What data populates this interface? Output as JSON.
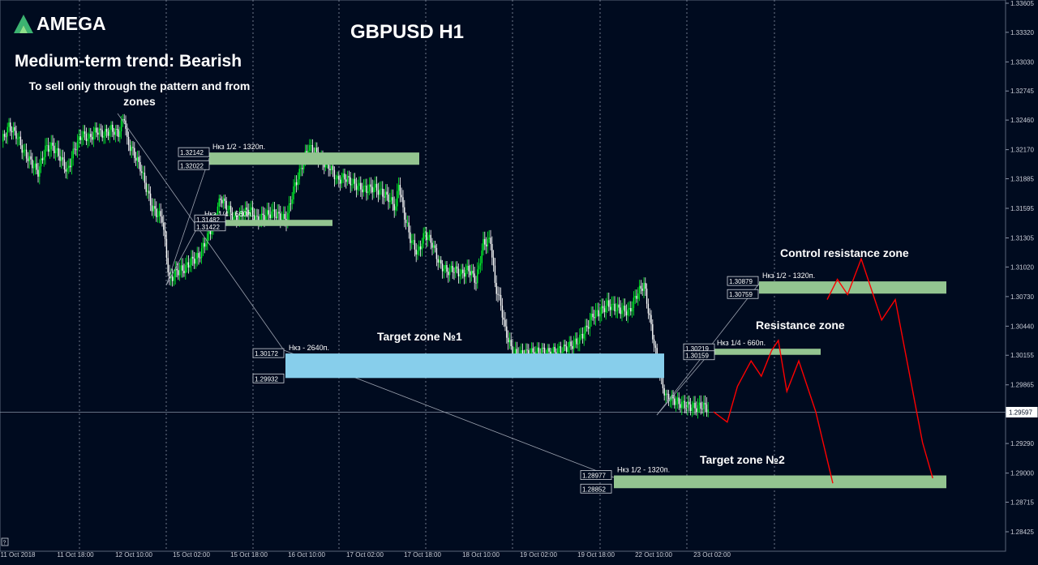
{
  "brand": {
    "name": "AMEGA"
  },
  "chart_data": {
    "type": "candlestick",
    "title": "GBPUSD H1",
    "ylim": [
      1.283,
      1.3364
    ],
    "x_ticks": [
      "11 Oct 2018",
      "11 Oct 18:00",
      "12 Oct 10:00",
      "15 Oct 02:00",
      "15 Oct 18:00",
      "16 Oct 10:00",
      "17 Oct 02:00",
      "17 Oct 18:00",
      "18 Oct 10:00",
      "19 Oct 02:00",
      "19 Oct 18:00",
      "22 Oct 10:00",
      "23 Oct 02:00"
    ],
    "y_ticks": [
      "1.33605",
      "1.33320",
      "1.33030",
      "1.32745",
      "1.32460",
      "1.32170",
      "1.31885",
      "1.31595",
      "1.31305",
      "1.31020",
      "1.30730",
      "1.30440",
      "1.30155",
      "1.29865",
      "1.29580",
      "1.29290",
      "1.29000",
      "1.28715",
      "1.28425"
    ],
    "current_price": "1.29597",
    "close_path": [
      [
        0,
        1.3225
      ],
      [
        5,
        1.324
      ],
      [
        10,
        1.3232
      ],
      [
        15,
        1.3215
      ],
      [
        20,
        1.3205
      ],
      [
        25,
        1.3195
      ],
      [
        30,
        1.3218
      ],
      [
        35,
        1.322
      ],
      [
        40,
        1.321
      ],
      [
        45,
        1.3195
      ],
      [
        50,
        1.3218
      ],
      [
        55,
        1.3232
      ],
      [
        60,
        1.3228
      ],
      [
        65,
        1.3236
      ],
      [
        70,
        1.3232
      ],
      [
        75,
        1.3237
      ],
      [
        80,
        1.3233
      ],
      [
        84,
        1.325
      ],
      [
        86,
        1.3225
      ],
      [
        90,
        1.3215
      ],
      [
        95,
        1.32
      ],
      [
        100,
        1.3175
      ],
      [
        103,
        1.316
      ],
      [
        106,
        1.3155
      ],
      [
        110,
        1.315
      ],
      [
        115,
        1.3088
      ],
      [
        120,
        1.3098
      ],
      [
        125,
        1.31
      ],
      [
        130,
        1.3108
      ],
      [
        135,
        1.3112
      ],
      [
        140,
        1.3128
      ],
      [
        145,
        1.3145
      ],
      [
        150,
        1.317
      ],
      [
        155,
        1.316
      ],
      [
        160,
        1.3148
      ],
      [
        165,
        1.3155
      ],
      [
        170,
        1.3158
      ],
      [
        175,
        1.3148
      ],
      [
        180,
        1.3152
      ],
      [
        185,
        1.3155
      ],
      [
        190,
        1.3152
      ],
      [
        195,
        1.3148
      ],
      [
        200,
        1.3178
      ],
      [
        205,
        1.3198
      ],
      [
        210,
        1.322
      ],
      [
        215,
        1.3215
      ],
      [
        220,
        1.3205
      ],
      [
        225,
        1.32
      ],
      [
        230,
        1.3187
      ],
      [
        235,
        1.319
      ],
      [
        240,
        1.3185
      ],
      [
        245,
        1.318
      ],
      [
        250,
        1.3178
      ],
      [
        255,
        1.318
      ],
      [
        260,
        1.3175
      ],
      [
        265,
        1.317
      ],
      [
        270,
        1.316
      ],
      [
        272,
        1.3185
      ],
      [
        275,
        1.3158
      ],
      [
        280,
        1.313
      ],
      [
        285,
        1.3115
      ],
      [
        290,
        1.3135
      ],
      [
        295,
        1.3125
      ],
      [
        300,
        1.3105
      ],
      [
        305,
        1.3098
      ],
      [
        310,
        1.31
      ],
      [
        315,
        1.3095
      ],
      [
        320,
        1.31
      ],
      [
        325,
        1.3088
      ],
      [
        330,
        1.3125
      ],
      [
        335,
        1.3128
      ],
      [
        338,
        1.3085
      ],
      [
        342,
        1.3065
      ],
      [
        345,
        1.304
      ],
      [
        350,
        1.3018
      ],
      [
        355,
        1.3016
      ],
      [
        360,
        1.3018
      ],
      [
        365,
        1.3018
      ],
      [
        370,
        1.302
      ],
      [
        375,
        1.3018
      ],
      [
        380,
        1.302
      ],
      [
        385,
        1.3022
      ],
      [
        390,
        1.3025
      ],
      [
        395,
        1.303
      ],
      [
        400,
        1.304
      ],
      [
        405,
        1.3055
      ],
      [
        410,
        1.3058
      ],
      [
        415,
        1.3065
      ],
      [
        420,
        1.3062
      ],
      [
        425,
        1.306
      ],
      [
        430,
        1.3058
      ],
      [
        435,
        1.3075
      ],
      [
        440,
        1.3085
      ],
      [
        443,
        1.306
      ],
      [
        446,
        1.3035
      ],
      [
        449,
        1.301
      ],
      [
        452,
        1.299
      ],
      [
        455,
        1.2975
      ],
      [
        460,
        1.2972
      ],
      [
        465,
        1.2968
      ],
      [
        470,
        1.2966
      ],
      [
        475,
        1.2964
      ],
      [
        480,
        1.2966
      ],
      [
        485,
        1.2963
      ]
    ],
    "zones": [
      {
        "label": "Нкз 1/2 - 1320п.",
        "upper": "1.32142",
        "lower": "1.32022",
        "y_top": 1.32142,
        "y_bottom": 1.32022,
        "color": "#93c490"
      },
      {
        "label": "Нкз 1/4 - 660п.",
        "upper": "1.31482",
        "lower": "1.31422",
        "y_top": 1.31482,
        "y_bottom": 1.31422,
        "color": "#93c490"
      },
      {
        "label": "Нкз - 2640п.",
        "upper": "1.30172",
        "lower": "1.29932",
        "y_top": 1.30172,
        "y_bottom": 1.29932,
        "color": "#87ceeb"
      },
      {
        "label": "Нкз 1/2 - 1320п.",
        "upper": "1.28977",
        "lower": "1.28852",
        "y_top": 1.28977,
        "y_bottom": 1.28852,
        "color": "#93c490"
      },
      {
        "label": "Нкз 1/4 - 660п.",
        "upper": "1.30219",
        "lower": "1.30159",
        "y_top": 1.30219,
        "y_bottom": 1.30159,
        "color": "#93c490"
      },
      {
        "label": "Нкз 1/2 - 1320п.",
        "upper": "1.30879",
        "lower": "1.30759",
        "y_top": 1.30879,
        "y_bottom": 1.30759,
        "color": "#93c490"
      }
    ],
    "annotations": [
      "Target zone №1",
      "Target zone №2",
      "Resistance zone",
      "Control resistance zone"
    ],
    "forecast_color": "#ff0000",
    "forecast_path": [
      [
        0,
        1.296
      ],
      [
        8,
        1.295
      ],
      [
        14,
        1.2985
      ],
      [
        22,
        1.301
      ],
      [
        28,
        1.2995
      ],
      [
        34,
        1.302
      ],
      [
        38,
        1.303
      ],
      [
        43,
        1.298
      ],
      [
        50,
        1.301
      ],
      [
        60,
        1.296
      ],
      [
        70,
        1.289
      ]
    ],
    "forecast_path_2": [
      [
        0,
        1.307
      ],
      [
        6,
        1.309
      ],
      [
        12,
        1.3075
      ],
      [
        20,
        1.311
      ],
      [
        26,
        1.308
      ],
      [
        32,
        1.305
      ],
      [
        40,
        1.307
      ],
      [
        48,
        1.3
      ],
      [
        56,
        1.293
      ],
      [
        62,
        1.2895
      ]
    ]
  },
  "text": {
    "trend": "Medium-term trend: Bearish",
    "note": "To sell only through the pattern and from zones"
  }
}
